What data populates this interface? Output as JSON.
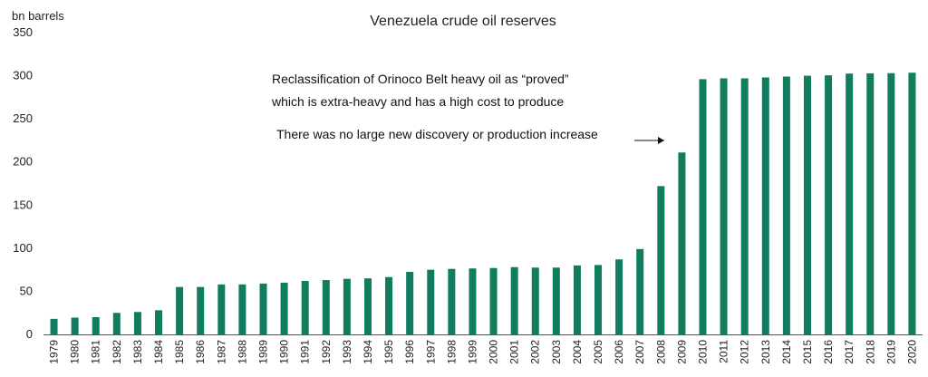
{
  "chart_data": {
    "type": "bar",
    "title": "Venezuela crude oil reserves",
    "ylabel": "bn barrels",
    "xlabel": "",
    "ylim": [
      0,
      350
    ],
    "yticks": [
      0,
      50,
      100,
      150,
      200,
      250,
      300,
      350
    ],
    "grid": false,
    "legend": "none",
    "bar_color": "#0f7d5e",
    "categories": [
      "1979",
      "1980",
      "1981",
      "1982",
      "1983",
      "1984",
      "1985",
      "1986",
      "1987",
      "1988",
      "1989",
      "1990",
      "1991",
      "1992",
      "1993",
      "1994",
      "1995",
      "1996",
      "1997",
      "1998",
      "1999",
      "2000",
      "2001",
      "2002",
      "2003",
      "2004",
      "2005",
      "2006",
      "2007",
      "2008",
      "2009",
      "2010",
      "2011",
      "2012",
      "2013",
      "2014",
      "2015",
      "2016",
      "2017",
      "2018",
      "2019",
      "2020"
    ],
    "values": [
      18,
      19.5,
      20,
      25,
      26,
      28,
      55,
      55,
      58,
      58,
      59,
      60,
      62,
      63,
      64.5,
      65,
      66.5,
      72.5,
      75,
      76,
      76.5,
      77,
      78,
      77.5,
      77.5,
      80,
      80.5,
      87,
      99,
      172,
      211,
      296,
      297,
      297,
      298,
      299,
      300,
      300.5,
      302.5,
      302.8,
      303,
      303.5
    ],
    "annotations": {
      "line1": "Reclassification of Orinoco Belt heavy oil as “proved”",
      "line2": "which is extra-heavy and has a high cost to produce",
      "line3": "There was no large new discovery or production increase"
    }
  }
}
